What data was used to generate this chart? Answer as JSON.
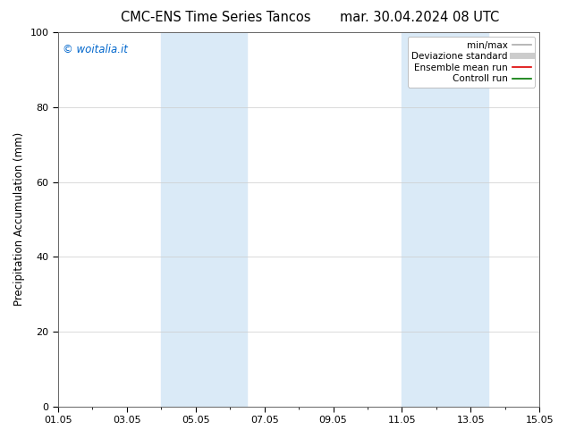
{
  "title_left": "CMC-ENS Time Series Tancos",
  "title_right": "mar. 30.04.2024 08 UTC",
  "ylabel": "Precipitation Accumulation (mm)",
  "ylim": [
    0,
    100
  ],
  "yticks": [
    0,
    20,
    40,
    60,
    80,
    100
  ],
  "xlim": [
    0,
    14
  ],
  "xtick_labels": [
    "01.05",
    "03.05",
    "05.05",
    "07.05",
    "09.05",
    "11.05",
    "13.05",
    "15.05"
  ],
  "xtick_positions": [
    0,
    2,
    4,
    6,
    8,
    10,
    12,
    14
  ],
  "shaded_bands": [
    {
      "xmin": 3.0,
      "xmax": 5.5
    },
    {
      "xmin": 10.0,
      "xmax": 12.5
    }
  ],
  "band_color": "#daeaf7",
  "watermark_text": "© woitalia.it",
  "watermark_color": "#0066cc",
  "legend_entries": [
    {
      "label": "min/max",
      "color": "#aaaaaa",
      "lw": 1.2,
      "ls": "-"
    },
    {
      "label": "Deviazione standard",
      "color": "#cccccc",
      "lw": 5,
      "ls": "-"
    },
    {
      "label": "Ensemble mean run",
      "color": "#dd0000",
      "lw": 1.2,
      "ls": "-"
    },
    {
      "label": "Controll run",
      "color": "#007700",
      "lw": 1.2,
      "ls": "-"
    }
  ],
  "bg_color": "#ffffff",
  "grid_color": "#cccccc",
  "spine_color": "#666666",
  "title_fontsize": 10.5,
  "label_fontsize": 8.5,
  "tick_fontsize": 8,
  "legend_fontsize": 7.5
}
